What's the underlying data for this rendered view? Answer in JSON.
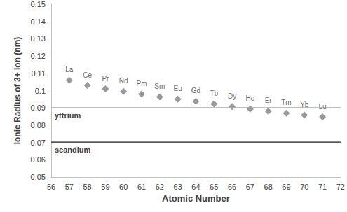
{
  "chart_data": {
    "type": "scatter",
    "x": [
      57,
      58,
      59,
      60,
      61,
      62,
      63,
      64,
      65,
      66,
      67,
      68,
      69,
      70,
      71
    ],
    "values": [
      0.106,
      0.103,
      0.101,
      0.0995,
      0.098,
      0.0964,
      0.095,
      0.0938,
      0.0923,
      0.0908,
      0.0894,
      0.0881,
      0.0869,
      0.0858,
      0.0848
    ],
    "labels": [
      "La",
      "Ce",
      "Pr",
      "Nd",
      "Pm",
      "Sm",
      "Eu",
      "Gd",
      "Tb",
      "Dy",
      "Ho",
      "Er",
      "Tm",
      "Yb",
      "Lu"
    ],
    "color": "#7f7f7f",
    "marker": "diamond",
    "xlabel": "Atomic Number",
    "ylabel": "Ionic Radius of 3+ ion (nm)",
    "xlim": [
      56,
      72
    ],
    "xticks": [
      56,
      57,
      58,
      59,
      60,
      61,
      62,
      63,
      64,
      65,
      66,
      67,
      68,
      69,
      70,
      71,
      72
    ],
    "ylim": [
      0.05,
      0.15
    ],
    "yticks": [
      0.05,
      0.06,
      0.07,
      0.08,
      0.09,
      0.1,
      0.11,
      0.12,
      0.13,
      0.14,
      0.15
    ],
    "grid": false,
    "reference_lines": [
      {
        "label": "yttrium",
        "value": 0.088,
        "color": "#a6a6a6"
      },
      {
        "label": "scandium",
        "value": 0.068,
        "color": "#595959"
      }
    ]
  }
}
